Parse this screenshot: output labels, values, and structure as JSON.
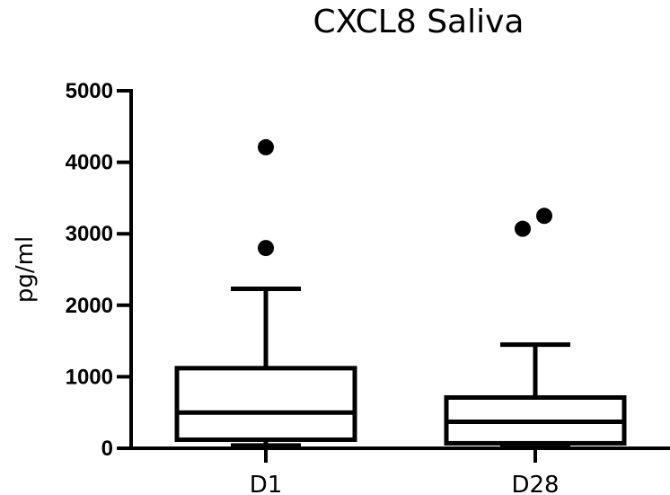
{
  "chart_data": {
    "type": "box",
    "title": "CXCL8 Saliva",
    "xlabel": "",
    "ylabel": "pg/ml",
    "ylim": [
      0,
      5000
    ],
    "yticks": [
      0,
      1000,
      2000,
      3000,
      4000,
      5000
    ],
    "categories": [
      "D1",
      "D28"
    ],
    "boxes": [
      {
        "category": "D1",
        "whisker_low": 40,
        "q1": 120,
        "median": 500,
        "q3": 1120,
        "whisker_high": 2230,
        "outliers": [
          2800,
          4210
        ]
      },
      {
        "category": "D28",
        "whisker_low": 40,
        "q1": 70,
        "median": 370,
        "q3": 710,
        "whisker_high": 1450,
        "outliers": [
          3070,
          3250
        ]
      }
    ],
    "grid": false,
    "legend": "none"
  }
}
